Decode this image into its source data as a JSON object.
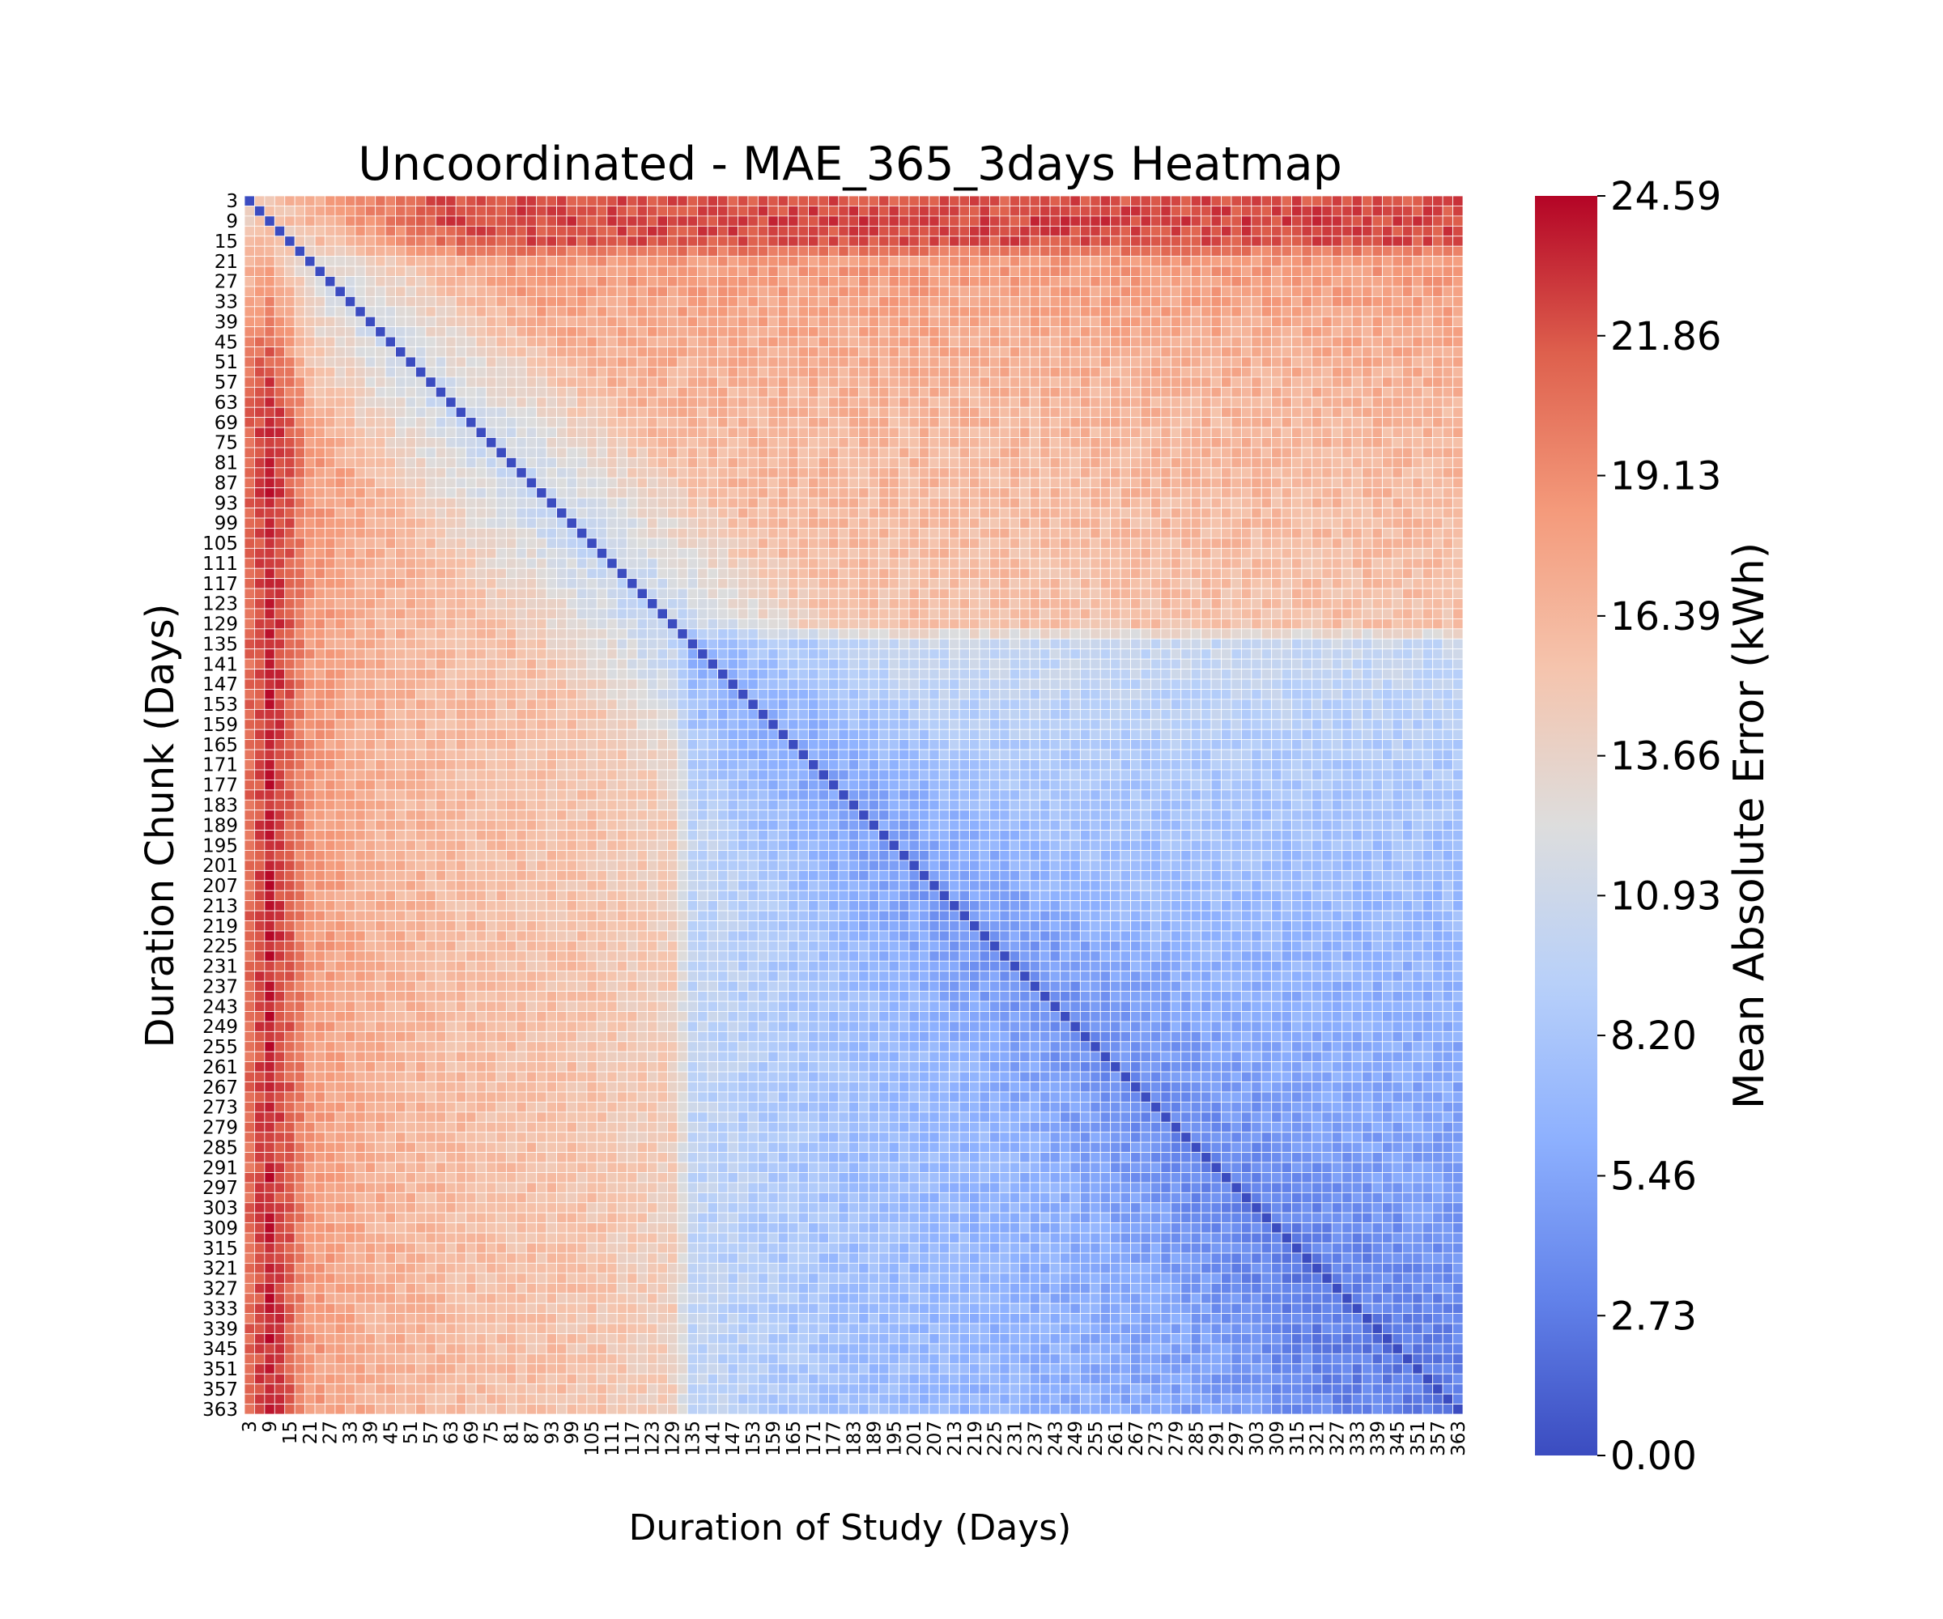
{
  "chart_data": {
    "type": "heatmap",
    "title": "Uncoordinated - MAE_365_3days Heatmap",
    "xlabel": "Duration of Study (Days)",
    "ylabel": "Duration Chunk (Days)",
    "colorbar_label": "Mean Absolute Error (kWh)",
    "colormap": "coolwarm",
    "value_range": [
      0.0,
      24.59
    ],
    "colorbar_ticks": [
      "0.00",
      "2.73",
      "5.46",
      "8.20",
      "10.93",
      "13.66",
      "16.39",
      "19.13",
      "21.86",
      "24.59"
    ],
    "x_values": {
      "start": 3,
      "end": 365,
      "step": 3
    },
    "y_values": {
      "start": 3,
      "end": 365,
      "step": 3
    },
    "tick_labels": [
      "3",
      "9",
      "15",
      "21",
      "27",
      "33",
      "39",
      "45",
      "51",
      "57",
      "63",
      "69",
      "75",
      "81",
      "87",
      "93",
      "99",
      "105",
      "111",
      "117",
      "123",
      "129",
      "135",
      "141",
      "147",
      "153",
      "159",
      "165",
      "171",
      "177",
      "183",
      "189",
      "195",
      "201",
      "207",
      "213",
      "219",
      "225",
      "231",
      "237",
      "243",
      "249",
      "255",
      "261",
      "267",
      "273",
      "279",
      "285",
      "291",
      "297",
      "303",
      "309",
      "315",
      "321",
      "327",
      "333",
      "339",
      "345",
      "351",
      "357",
      "363"
    ],
    "diagonal_value": 0.0,
    "grid_lines": "white",
    "notes_on_pattern": "",
    "row_profile": [
      {
        "row_day": 3,
        "mean_mae": 22.0
      },
      {
        "row_day": 9,
        "mean_mae": 22.5
      },
      {
        "row_day": 15,
        "mean_mae": 22.0
      },
      {
        "row_day": 21,
        "mean_mae": 18.5
      },
      {
        "row_day": 39,
        "mean_mae": 17.5
      },
      {
        "row_day": 63,
        "mean_mae": 16.5
      },
      {
        "row_day": 105,
        "mean_mae": 16.0
      },
      {
        "row_day": 129,
        "mean_mae": 15.5
      },
      {
        "row_day": 135,
        "mean_mae": 10.5
      },
      {
        "row_day": 183,
        "mean_mae": 8.0
      },
      {
        "row_day": 231,
        "mean_mae": 6.5
      },
      {
        "row_day": 273,
        "mean_mae": 5.5
      },
      {
        "row_day": 315,
        "mean_mae": 4.5
      },
      {
        "row_day": 363,
        "mean_mae": 4.0
      }
    ],
    "column_profile": [
      {
        "col_day": 3,
        "lower_mae": 21.0
      },
      {
        "col_day": 9,
        "lower_mae": 23.5
      },
      {
        "col_day": 15,
        "lower_mae": 21.5
      },
      {
        "col_day": 21,
        "lower_mae": 18.5
      },
      {
        "col_day": 39,
        "lower_mae": 17.0
      },
      {
        "col_day": 63,
        "lower_mae": 16.0
      },
      {
        "col_day": 99,
        "lower_mae": 15.5
      },
      {
        "col_day": 129,
        "lower_mae": 14.5
      },
      {
        "col_day": 135,
        "lower_mae": 10.0
      },
      {
        "col_day": 183,
        "lower_mae": 7.5
      },
      {
        "col_day": 231,
        "lower_mae": 6.5
      },
      {
        "col_day": 273,
        "lower_mae": 5.5
      },
      {
        "col_day": 315,
        "lower_mae": 4.0
      },
      {
        "col_day": 363,
        "lower_mae": 3.5
      }
    ]
  }
}
